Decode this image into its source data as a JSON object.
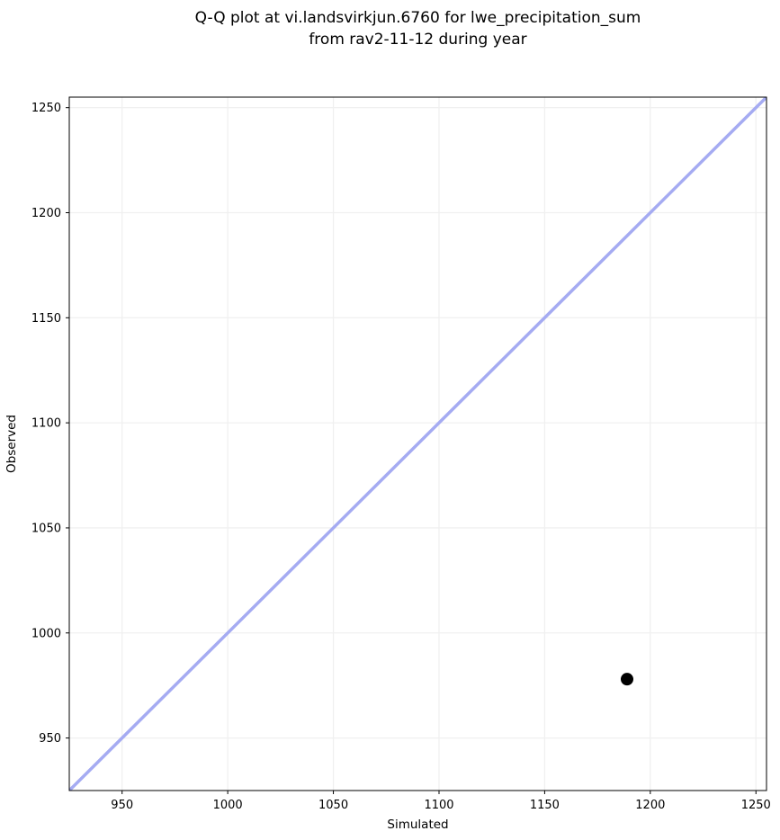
{
  "chart_data": {
    "type": "scatter",
    "title": "Q-Q plot at vi.landsvirkjun.6760 for lwe_precipitation_sum\nfrom rav2-11-12 during year",
    "xlabel": "Simulated",
    "ylabel": "Observed",
    "xlim": [
      925,
      1255
    ],
    "ylim": [
      925,
      1255
    ],
    "xticks": [
      950,
      1000,
      1050,
      1100,
      1150,
      1200,
      1250
    ],
    "yticks": [
      950,
      1000,
      1050,
      1100,
      1150,
      1200,
      1250
    ],
    "grid": true,
    "legend": false,
    "series": [
      {
        "name": "quantile-points",
        "type": "scatter",
        "points": [
          {
            "x": 1189,
            "y": 978
          }
        ],
        "color": "#000000"
      }
    ],
    "reference_line": {
      "type": "identity",
      "x": [
        920,
        1260
      ],
      "y": [
        920,
        1260
      ],
      "color": "#a5abf2"
    },
    "colors": {
      "grid": "#f0f0f0",
      "spine": "#000000",
      "text": "#000000",
      "background": "#ffffff"
    }
  }
}
